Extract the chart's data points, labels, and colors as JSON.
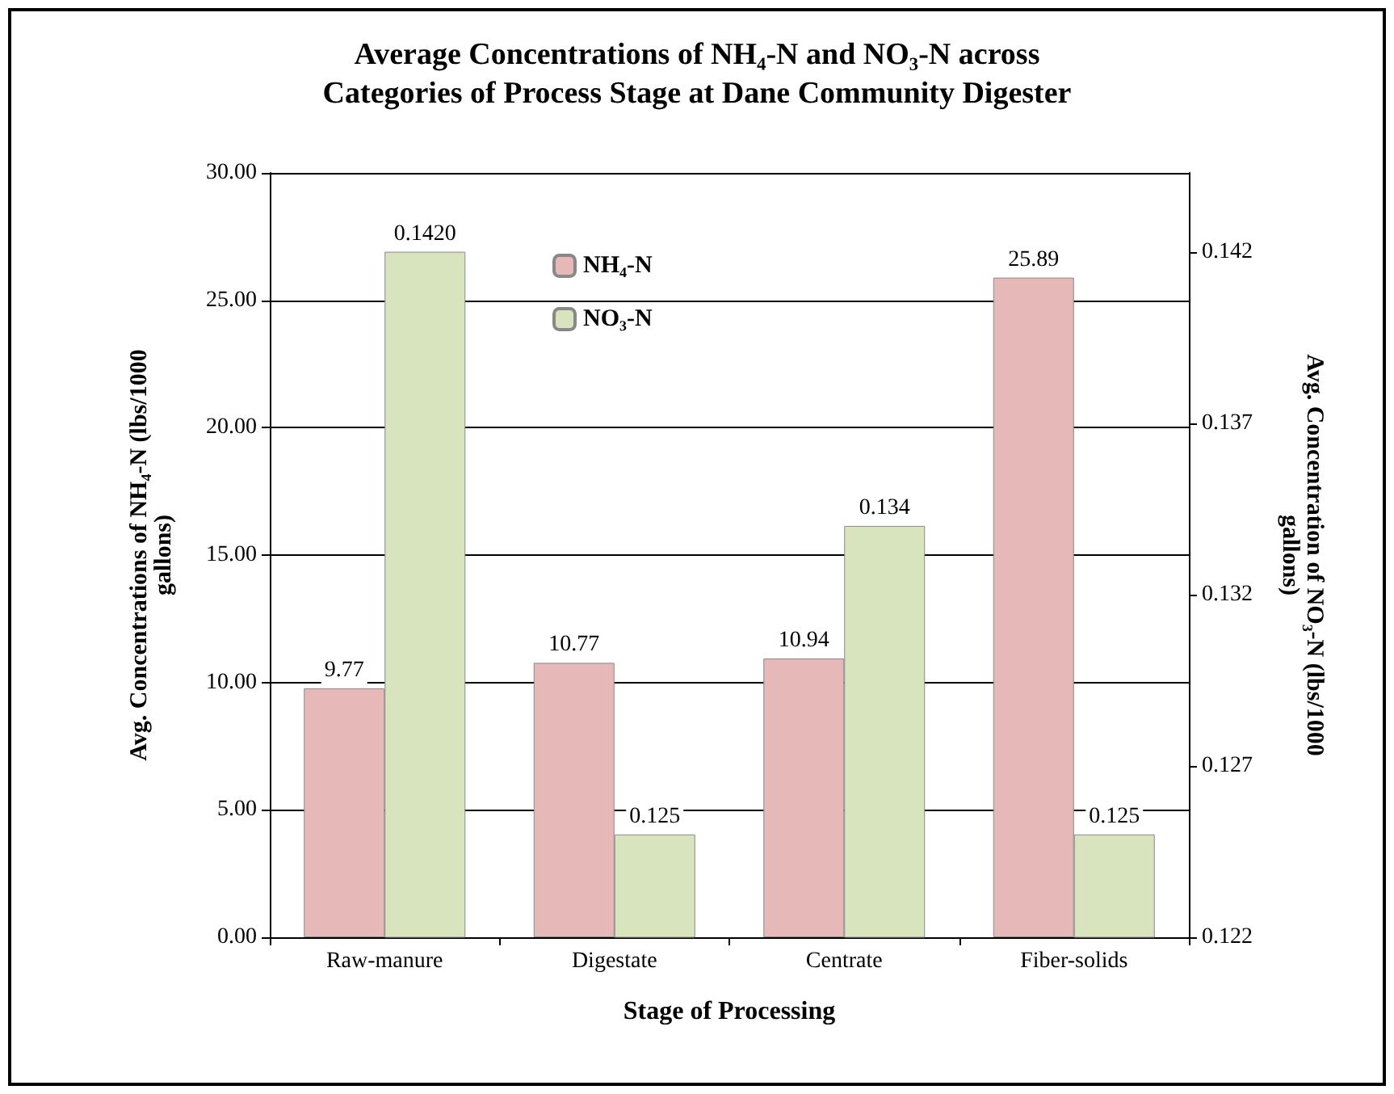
{
  "chart_data": {
    "type": "bar",
    "title": "Average Concentrations of NH₄-N and NO₃-N across\nCategories of Process Stage at Dane Community Digester",
    "xlabel": "Stage of Processing",
    "ylabel": "Avg. Concentrations of NH₄-N (lbs/1000 gallons)",
    "y2label": "Avg. Concentration of NO₃-N (lbs/1000 gallons)",
    "categories": [
      "Raw-manure",
      "Digestate",
      "Centrate",
      "Fiber-solids"
    ],
    "series": [
      {
        "name": "NH₄-N",
        "color": "#e6b9b8",
        "values": [
          9.77,
          10.77,
          10.94,
          25.89
        ],
        "value_labels": [
          "9.77",
          "10.77",
          "10.94",
          "25.89"
        ]
      },
      {
        "name": "NO₃-N",
        "color": "#d7e4bd",
        "axis": "y2",
        "values": [
          0.142,
          0.125,
          0.134,
          0.125
        ],
        "value_labels": [
          "0.1420",
          "0.125",
          "0.134",
          "0.125"
        ]
      }
    ],
    "ylim": [
      0,
      30
    ],
    "yticks": [
      {
        "value": 0,
        "label": "0.00"
      },
      {
        "value": 5,
        "label": "5.00"
      },
      {
        "value": 10,
        "label": "10.00"
      },
      {
        "value": 15,
        "label": "15.00"
      },
      {
        "value": 20,
        "label": "20.00"
      },
      {
        "value": 25,
        "label": "25.00"
      },
      {
        "value": 30,
        "label": "30.00"
      }
    ],
    "y2lim": [
      0.122,
      0.1443
    ],
    "y2ticks": [
      0.122,
      0.127,
      0.132,
      0.137,
      0.142
    ],
    "grid": "y",
    "legend": "top"
  }
}
